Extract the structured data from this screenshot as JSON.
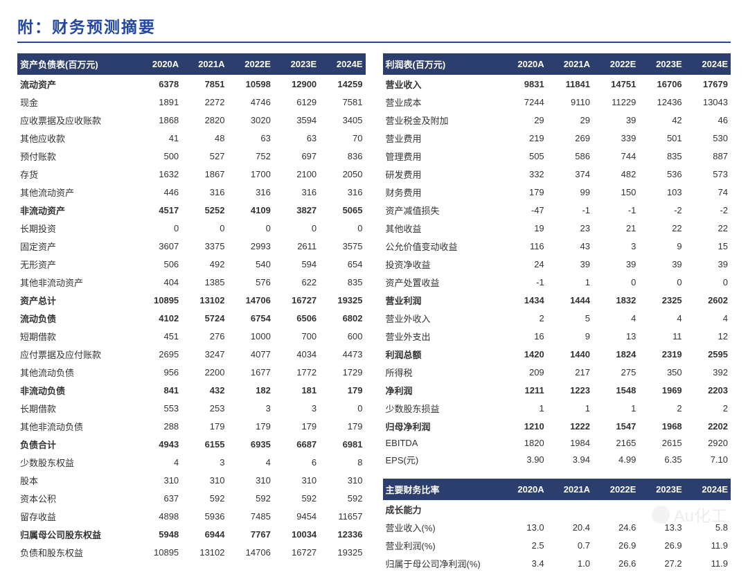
{
  "page_title": "附：财务预测摘要",
  "watermark_text": "Au化工",
  "periods": [
    "2020A",
    "2021A",
    "2022E",
    "2023E",
    "2024E"
  ],
  "balance_sheet": {
    "header_label": "资产负债表(百万元)",
    "rows": [
      {
        "label": "流动资产",
        "bold": true,
        "vals": [
          "6378",
          "7851",
          "10598",
          "12900",
          "14259"
        ]
      },
      {
        "label": "现金",
        "bold": false,
        "vals": [
          "1891",
          "2272",
          "4746",
          "6129",
          "7581"
        ]
      },
      {
        "label": "应收票据及应收账款",
        "bold": false,
        "vals": [
          "1868",
          "2820",
          "3020",
          "3594",
          "3405"
        ]
      },
      {
        "label": "其他应收款",
        "bold": false,
        "vals": [
          "41",
          "48",
          "63",
          "63",
          "70"
        ]
      },
      {
        "label": "预付账款",
        "bold": false,
        "vals": [
          "500",
          "527",
          "752",
          "697",
          "836"
        ]
      },
      {
        "label": "存货",
        "bold": false,
        "vals": [
          "1632",
          "1867",
          "1700",
          "2100",
          "2050"
        ]
      },
      {
        "label": "其他流动资产",
        "bold": false,
        "vals": [
          "446",
          "316",
          "316",
          "316",
          "316"
        ]
      },
      {
        "label": "非流动资产",
        "bold": true,
        "vals": [
          "4517",
          "5252",
          "4109",
          "3827",
          "5065"
        ]
      },
      {
        "label": "长期投资",
        "bold": false,
        "vals": [
          "0",
          "0",
          "0",
          "0",
          "0"
        ]
      },
      {
        "label": "固定资产",
        "bold": false,
        "vals": [
          "3607",
          "3375",
          "2993",
          "2611",
          "3575"
        ]
      },
      {
        "label": "无形资产",
        "bold": false,
        "vals": [
          "506",
          "492",
          "540",
          "594",
          "654"
        ]
      },
      {
        "label": "其他非流动资产",
        "bold": false,
        "vals": [
          "404",
          "1385",
          "576",
          "622",
          "835"
        ]
      },
      {
        "label": "资产总计",
        "bold": true,
        "vals": [
          "10895",
          "13102",
          "14706",
          "16727",
          "19325"
        ]
      },
      {
        "label": "流动负债",
        "bold": true,
        "vals": [
          "4102",
          "5724",
          "6754",
          "6506",
          "6802"
        ]
      },
      {
        "label": "短期借款",
        "bold": false,
        "vals": [
          "451",
          "276",
          "1000",
          "700",
          "600"
        ]
      },
      {
        "label": "应付票据及应付账款",
        "bold": false,
        "vals": [
          "2695",
          "3247",
          "4077",
          "4034",
          "4473"
        ]
      },
      {
        "label": "其他流动负债",
        "bold": false,
        "vals": [
          "956",
          "2200",
          "1677",
          "1772",
          "1729"
        ]
      },
      {
        "label": "非流动负债",
        "bold": true,
        "vals": [
          "841",
          "432",
          "182",
          "181",
          "179"
        ]
      },
      {
        "label": "长期借款",
        "bold": false,
        "vals": [
          "553",
          "253",
          "3",
          "3",
          "0"
        ]
      },
      {
        "label": "其他非流动负债",
        "bold": false,
        "vals": [
          "288",
          "179",
          "179",
          "179",
          "179"
        ]
      },
      {
        "label": "负债合计",
        "bold": true,
        "vals": [
          "4943",
          "6155",
          "6935",
          "6687",
          "6981"
        ]
      },
      {
        "label": "少数股东权益",
        "bold": false,
        "vals": [
          "4",
          "3",
          "4",
          "6",
          "8"
        ]
      },
      {
        "label": "股本",
        "bold": false,
        "vals": [
          "310",
          "310",
          "310",
          "310",
          "310"
        ]
      },
      {
        "label": "资本公积",
        "bold": false,
        "vals": [
          "637",
          "592",
          "592",
          "592",
          "592"
        ]
      },
      {
        "label": "留存收益",
        "bold": false,
        "vals": [
          "4898",
          "5936",
          "7485",
          "9454",
          "11657"
        ]
      },
      {
        "label": "归属母公司股东权益",
        "bold": true,
        "vals": [
          "5948",
          "6944",
          "7767",
          "10034",
          "12336"
        ]
      },
      {
        "label": "负债和股东权益",
        "bold": false,
        "vals": [
          "10895",
          "13102",
          "14706",
          "16727",
          "19325"
        ]
      }
    ]
  },
  "income_statement": {
    "header_label": "利润表(百万元)",
    "rows": [
      {
        "label": "营业收入",
        "bold": true,
        "vals": [
          "9831",
          "11841",
          "14751",
          "16706",
          "17679"
        ]
      },
      {
        "label": "营业成本",
        "bold": false,
        "vals": [
          "7244",
          "9110",
          "11229",
          "12436",
          "13043"
        ]
      },
      {
        "label": "营业税金及附加",
        "bold": false,
        "vals": [
          "29",
          "29",
          "39",
          "42",
          "46"
        ]
      },
      {
        "label": "营业费用",
        "bold": false,
        "vals": [
          "219",
          "269",
          "339",
          "501",
          "530"
        ]
      },
      {
        "label": "管理费用",
        "bold": false,
        "vals": [
          "505",
          "586",
          "744",
          "835",
          "887"
        ]
      },
      {
        "label": "研发费用",
        "bold": false,
        "vals": [
          "332",
          "374",
          "482",
          "536",
          "573"
        ]
      },
      {
        "label": "财务费用",
        "bold": false,
        "vals": [
          "179",
          "99",
          "150",
          "103",
          "74"
        ]
      },
      {
        "label": "资产减值损失",
        "bold": false,
        "vals": [
          "-47",
          "-1",
          "-1",
          "-2",
          "-2"
        ]
      },
      {
        "label": "其他收益",
        "bold": false,
        "vals": [
          "19",
          "23",
          "21",
          "22",
          "22"
        ]
      },
      {
        "label": "公允价值变动收益",
        "bold": false,
        "vals": [
          "116",
          "43",
          "3",
          "9",
          "15"
        ]
      },
      {
        "label": "投资净收益",
        "bold": false,
        "vals": [
          "24",
          "39",
          "39",
          "39",
          "39"
        ]
      },
      {
        "label": "资产处置收益",
        "bold": false,
        "vals": [
          "-1",
          "1",
          "0",
          "0",
          "0"
        ]
      },
      {
        "label": "营业利润",
        "bold": true,
        "vals": [
          "1434",
          "1444",
          "1832",
          "2325",
          "2602"
        ]
      },
      {
        "label": "营业外收入",
        "bold": false,
        "vals": [
          "2",
          "5",
          "4",
          "4",
          "4"
        ]
      },
      {
        "label": "营业外支出",
        "bold": false,
        "vals": [
          "16",
          "9",
          "13",
          "11",
          "12"
        ]
      },
      {
        "label": "利润总额",
        "bold": true,
        "vals": [
          "1420",
          "1440",
          "1824",
          "2319",
          "2595"
        ]
      },
      {
        "label": "所得税",
        "bold": false,
        "vals": [
          "209",
          "217",
          "275",
          "350",
          "392"
        ]
      },
      {
        "label": "净利润",
        "bold": true,
        "vals": [
          "1211",
          "1223",
          "1548",
          "1969",
          "2203"
        ]
      },
      {
        "label": "少数股东损益",
        "bold": false,
        "vals": [
          "1",
          "1",
          "1",
          "2",
          "2"
        ]
      },
      {
        "label": "归母净利润",
        "bold": true,
        "vals": [
          "1210",
          "1222",
          "1547",
          "1968",
          "2202"
        ]
      },
      {
        "label": "EBITDA",
        "bold": false,
        "vals": [
          "1820",
          "1984",
          "2165",
          "2615",
          "2920"
        ]
      },
      {
        "label": "EPS(元)",
        "bold": false,
        "vals": [
          "3.90",
          "3.94",
          "4.99",
          "6.35",
          "7.10"
        ]
      }
    ]
  },
  "ratios": {
    "header_label": "主要财务比率",
    "rows": [
      {
        "label": "成长能力",
        "bold": true,
        "vals": [
          "",
          "",
          "",
          "",
          ""
        ]
      },
      {
        "label": "营业收入(%)",
        "bold": false,
        "vals": [
          "13.0",
          "20.4",
          "24.6",
          "13.3",
          "5.8"
        ]
      },
      {
        "label": "营业利润(%)",
        "bold": false,
        "vals": [
          "2.5",
          "0.7",
          "26.9",
          "26.9",
          "11.9"
        ]
      },
      {
        "label": "归属于母公司净利润(%)",
        "bold": false,
        "vals": [
          "3.4",
          "1.0",
          "26.6",
          "27.2",
          "11.9"
        ]
      }
    ]
  },
  "col_widths": {
    "label_pct": 34,
    "val_pct": 13.2
  },
  "header_bg": "#2c3e6e",
  "header_fg": "#ffffff",
  "title_color": "#2447a0"
}
